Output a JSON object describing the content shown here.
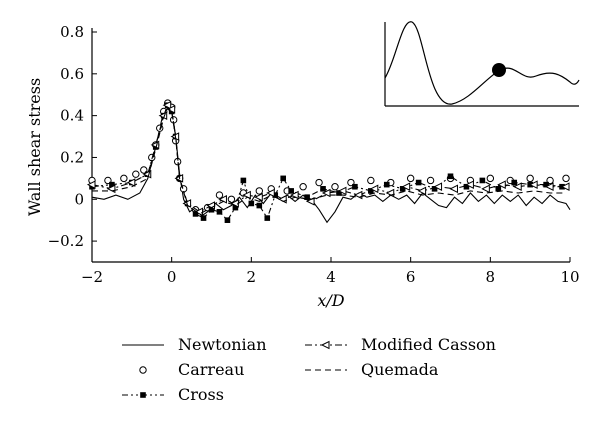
{
  "chart_data": {
    "type": "line",
    "title": "",
    "xlabel": "x/D",
    "ylabel": "Wall shear stress",
    "xlim": [
      -2,
      10
    ],
    "ylim": [
      -0.3,
      0.8
    ],
    "xticks": [
      -2,
      0,
      2,
      4,
      6,
      8,
      10
    ],
    "yticks": [
      -0.2,
      0,
      0.2,
      0.4,
      0.6,
      0.8
    ],
    "xtick_labels": [
      "−2",
      "0",
      "2",
      "4",
      "6",
      "8",
      "10"
    ],
    "ytick_labels": [
      "−0.2",
      "0",
      "0.2",
      "0.4",
      "0.6",
      "0.8"
    ],
    "grid": false,
    "legend_placement": "below",
    "series": [
      {
        "name": "Newtonian",
        "style": "solid",
        "marker": "none",
        "points": [
          [
            -2,
            0.01
          ],
          [
            -1.7,
            0.0
          ],
          [
            -1.4,
            0.02
          ],
          [
            -1.1,
            0.0
          ],
          [
            -0.8,
            0.03
          ],
          [
            -0.6,
            0.1
          ],
          [
            -0.4,
            0.25
          ],
          [
            -0.25,
            0.38
          ],
          [
            -0.1,
            0.44
          ],
          [
            0,
            0.42
          ],
          [
            0.1,
            0.3
          ],
          [
            0.2,
            0.12
          ],
          [
            0.3,
            0.0
          ],
          [
            0.45,
            -0.06
          ],
          [
            0.6,
            -0.04
          ],
          [
            0.75,
            -0.08
          ],
          [
            0.9,
            -0.06
          ],
          [
            1.1,
            -0.02
          ],
          [
            1.3,
            -0.05
          ],
          [
            1.5,
            -0.03
          ],
          [
            1.7,
            0.01
          ],
          [
            1.9,
            -0.04
          ],
          [
            2.1,
            0.02
          ],
          [
            2.3,
            -0.02
          ],
          [
            2.5,
            0.03
          ],
          [
            2.7,
            0.0
          ],
          [
            2.9,
            0.02
          ],
          [
            3.1,
            -0.01
          ],
          [
            3.3,
            0.02
          ],
          [
            3.5,
            0.0
          ],
          [
            3.7,
            -0.05
          ],
          [
            3.9,
            -0.11
          ],
          [
            4.1,
            -0.06
          ],
          [
            4.3,
            0.01
          ],
          [
            4.5,
            0.0
          ],
          [
            4.7,
            0.03
          ],
          [
            4.9,
            0.01
          ],
          [
            5.1,
            0.02
          ],
          [
            5.3,
            -0.01
          ],
          [
            5.5,
            0.02
          ],
          [
            5.7,
            0.0
          ],
          [
            5.9,
            0.02
          ],
          [
            6.1,
            -0.02
          ],
          [
            6.3,
            0.03
          ],
          [
            6.5,
            0.0
          ],
          [
            6.7,
            -0.03
          ],
          [
            6.9,
            -0.04
          ],
          [
            7.1,
            0.01
          ],
          [
            7.3,
            -0.02
          ],
          [
            7.5,
            0.03
          ],
          [
            7.7,
            -0.01
          ],
          [
            7.9,
            0.02
          ],
          [
            8.1,
            -0.02
          ],
          [
            8.3,
            0.02
          ],
          [
            8.5,
            -0.01
          ],
          [
            8.7,
            0.02
          ],
          [
            8.9,
            -0.03
          ],
          [
            9.1,
            0.01
          ],
          [
            9.3,
            -0.02
          ],
          [
            9.5,
            0.02
          ],
          [
            9.7,
            -0.01
          ],
          [
            9.9,
            -0.02
          ],
          [
            10,
            -0.05
          ]
        ]
      },
      {
        "name": "Carreau",
        "style": "none",
        "marker": "open-circle",
        "points": [
          [
            -2,
            0.09
          ],
          [
            -1.6,
            0.09
          ],
          [
            -1.2,
            0.1
          ],
          [
            -0.9,
            0.12
          ],
          [
            -0.7,
            0.14
          ],
          [
            -0.5,
            0.2
          ],
          [
            -0.4,
            0.26
          ],
          [
            -0.3,
            0.34
          ],
          [
            -0.2,
            0.42
          ],
          [
            -0.1,
            0.46
          ],
          [
            0,
            0.44
          ],
          [
            0.05,
            0.38
          ],
          [
            0.1,
            0.28
          ],
          [
            0.15,
            0.18
          ],
          [
            0.2,
            0.1
          ],
          [
            0.3,
            0.05
          ],
          [
            0.6,
            -0.05
          ],
          [
            0.9,
            -0.04
          ],
          [
            1.2,
            0.02
          ],
          [
            1.5,
            0.0
          ],
          [
            1.8,
            0.03
          ],
          [
            2.2,
            0.04
          ],
          [
            2.5,
            0.05
          ],
          [
            2.9,
            0.04
          ],
          [
            3.3,
            0.06
          ],
          [
            3.7,
            0.08
          ],
          [
            4.1,
            0.06
          ],
          [
            4.5,
            0.08
          ],
          [
            5.0,
            0.09
          ],
          [
            5.5,
            0.08
          ],
          [
            6.0,
            0.1
          ],
          [
            6.5,
            0.09
          ],
          [
            7.0,
            0.1
          ],
          [
            7.5,
            0.09
          ],
          [
            8.0,
            0.1
          ],
          [
            8.5,
            0.09
          ],
          [
            9.0,
            0.1
          ],
          [
            9.5,
            0.09
          ],
          [
            9.9,
            0.1
          ]
        ]
      },
      {
        "name": "Cross",
        "style": "dash-dot-dot",
        "marker": "filled-square",
        "points": [
          [
            -2,
            0.06
          ],
          [
            -1.5,
            0.07
          ],
          [
            -1,
            0.08
          ],
          [
            -0.6,
            0.12
          ],
          [
            -0.4,
            0.25
          ],
          [
            -0.2,
            0.4
          ],
          [
            -0.1,
            0.45
          ],
          [
            0,
            0.42
          ],
          [
            0.1,
            0.3
          ],
          [
            0.2,
            0.1
          ],
          [
            0.4,
            -0.02
          ],
          [
            0.6,
            -0.07
          ],
          [
            0.8,
            -0.09
          ],
          [
            1.0,
            -0.05
          ],
          [
            1.2,
            -0.06
          ],
          [
            1.4,
            -0.1
          ],
          [
            1.6,
            -0.04
          ],
          [
            1.8,
            0.09
          ],
          [
            2.0,
            -0.02
          ],
          [
            2.2,
            -0.03
          ],
          [
            2.4,
            -0.09
          ],
          [
            2.6,
            0.02
          ],
          [
            2.8,
            0.1
          ],
          [
            3.0,
            0.04
          ],
          [
            3.4,
            0.01
          ],
          [
            3.8,
            0.05
          ],
          [
            4.2,
            0.03
          ],
          [
            4.6,
            0.06
          ],
          [
            5.0,
            0.04
          ],
          [
            5.4,
            0.07
          ],
          [
            5.8,
            0.05
          ],
          [
            6.2,
            0.08
          ],
          [
            6.6,
            0.05
          ],
          [
            7.0,
            0.11
          ],
          [
            7.4,
            0.06
          ],
          [
            7.8,
            0.09
          ],
          [
            8.2,
            0.05
          ],
          [
            8.6,
            0.08
          ],
          [
            9.0,
            0.07
          ],
          [
            9.4,
            0.07
          ],
          [
            9.8,
            0.06
          ]
        ]
      },
      {
        "name": "Modified Casson",
        "style": "dash-dot",
        "marker": "open-triangle-left",
        "points": [
          [
            -2,
            0.07
          ],
          [
            -1.5,
            0.05
          ],
          [
            -1,
            0.08
          ],
          [
            -0.6,
            0.12
          ],
          [
            -0.4,
            0.26
          ],
          [
            -0.2,
            0.4
          ],
          [
            -0.1,
            0.45
          ],
          [
            0,
            0.43
          ],
          [
            0.1,
            0.3
          ],
          [
            0.2,
            0.1
          ],
          [
            0.4,
            -0.02
          ],
          [
            0.7,
            -0.06
          ],
          [
            1.0,
            -0.03
          ],
          [
            1.3,
            0.0
          ],
          [
            1.6,
            -0.02
          ],
          [
            1.9,
            0.02
          ],
          [
            2.2,
            0.01
          ],
          [
            2.5,
            0.03
          ],
          [
            2.8,
            0.0
          ],
          [
            3.1,
            0.02
          ],
          [
            3.5,
            -0.01
          ],
          [
            3.9,
            0.03
          ],
          [
            4.3,
            0.04
          ],
          [
            4.7,
            0.02
          ],
          [
            5.1,
            0.05
          ],
          [
            5.5,
            0.03
          ],
          [
            5.9,
            0.06
          ],
          [
            6.3,
            0.04
          ],
          [
            6.7,
            0.06
          ],
          [
            7.1,
            0.05
          ],
          [
            7.5,
            0.07
          ],
          [
            7.9,
            0.05
          ],
          [
            8.3,
            0.07
          ],
          [
            8.7,
            0.06
          ],
          [
            9.1,
            0.07
          ],
          [
            9.5,
            0.06
          ],
          [
            9.9,
            0.06
          ]
        ]
      },
      {
        "name": "Quemada",
        "style": "dashed",
        "marker": "none",
        "points": [
          [
            -2,
            0.04
          ],
          [
            -1.5,
            0.04
          ],
          [
            -1,
            0.06
          ],
          [
            -0.6,
            0.1
          ],
          [
            -0.4,
            0.24
          ],
          [
            -0.2,
            0.39
          ],
          [
            -0.1,
            0.44
          ],
          [
            0,
            0.42
          ],
          [
            0.1,
            0.29
          ],
          [
            0.2,
            0.1
          ],
          [
            0.4,
            -0.03
          ],
          [
            0.7,
            -0.07
          ],
          [
            1.0,
            -0.04
          ],
          [
            1.3,
            -0.01
          ],
          [
            1.6,
            -0.03
          ],
          [
            1.9,
            0.01
          ],
          [
            2.2,
            -0.01
          ],
          [
            2.5,
            0.02
          ],
          [
            2.8,
            -0.01
          ],
          [
            3.1,
            0.01
          ],
          [
            3.5,
            0.0
          ],
          [
            3.9,
            0.02
          ],
          [
            4.3,
            0.02
          ],
          [
            4.7,
            0.01
          ],
          [
            5.1,
            0.03
          ],
          [
            5.5,
            0.02
          ],
          [
            5.9,
            0.04
          ],
          [
            6.3,
            0.02
          ],
          [
            6.7,
            0.03
          ],
          [
            7.1,
            0.02
          ],
          [
            7.5,
            0.04
          ],
          [
            7.9,
            0.03
          ],
          [
            8.3,
            0.04
          ],
          [
            8.7,
            0.03
          ],
          [
            9.1,
            0.04
          ],
          [
            9.5,
            0.03
          ],
          [
            9.9,
            0.03
          ]
        ]
      }
    ],
    "inset": {
      "description": "geometry sketch",
      "marker": "filled-circle"
    }
  }
}
